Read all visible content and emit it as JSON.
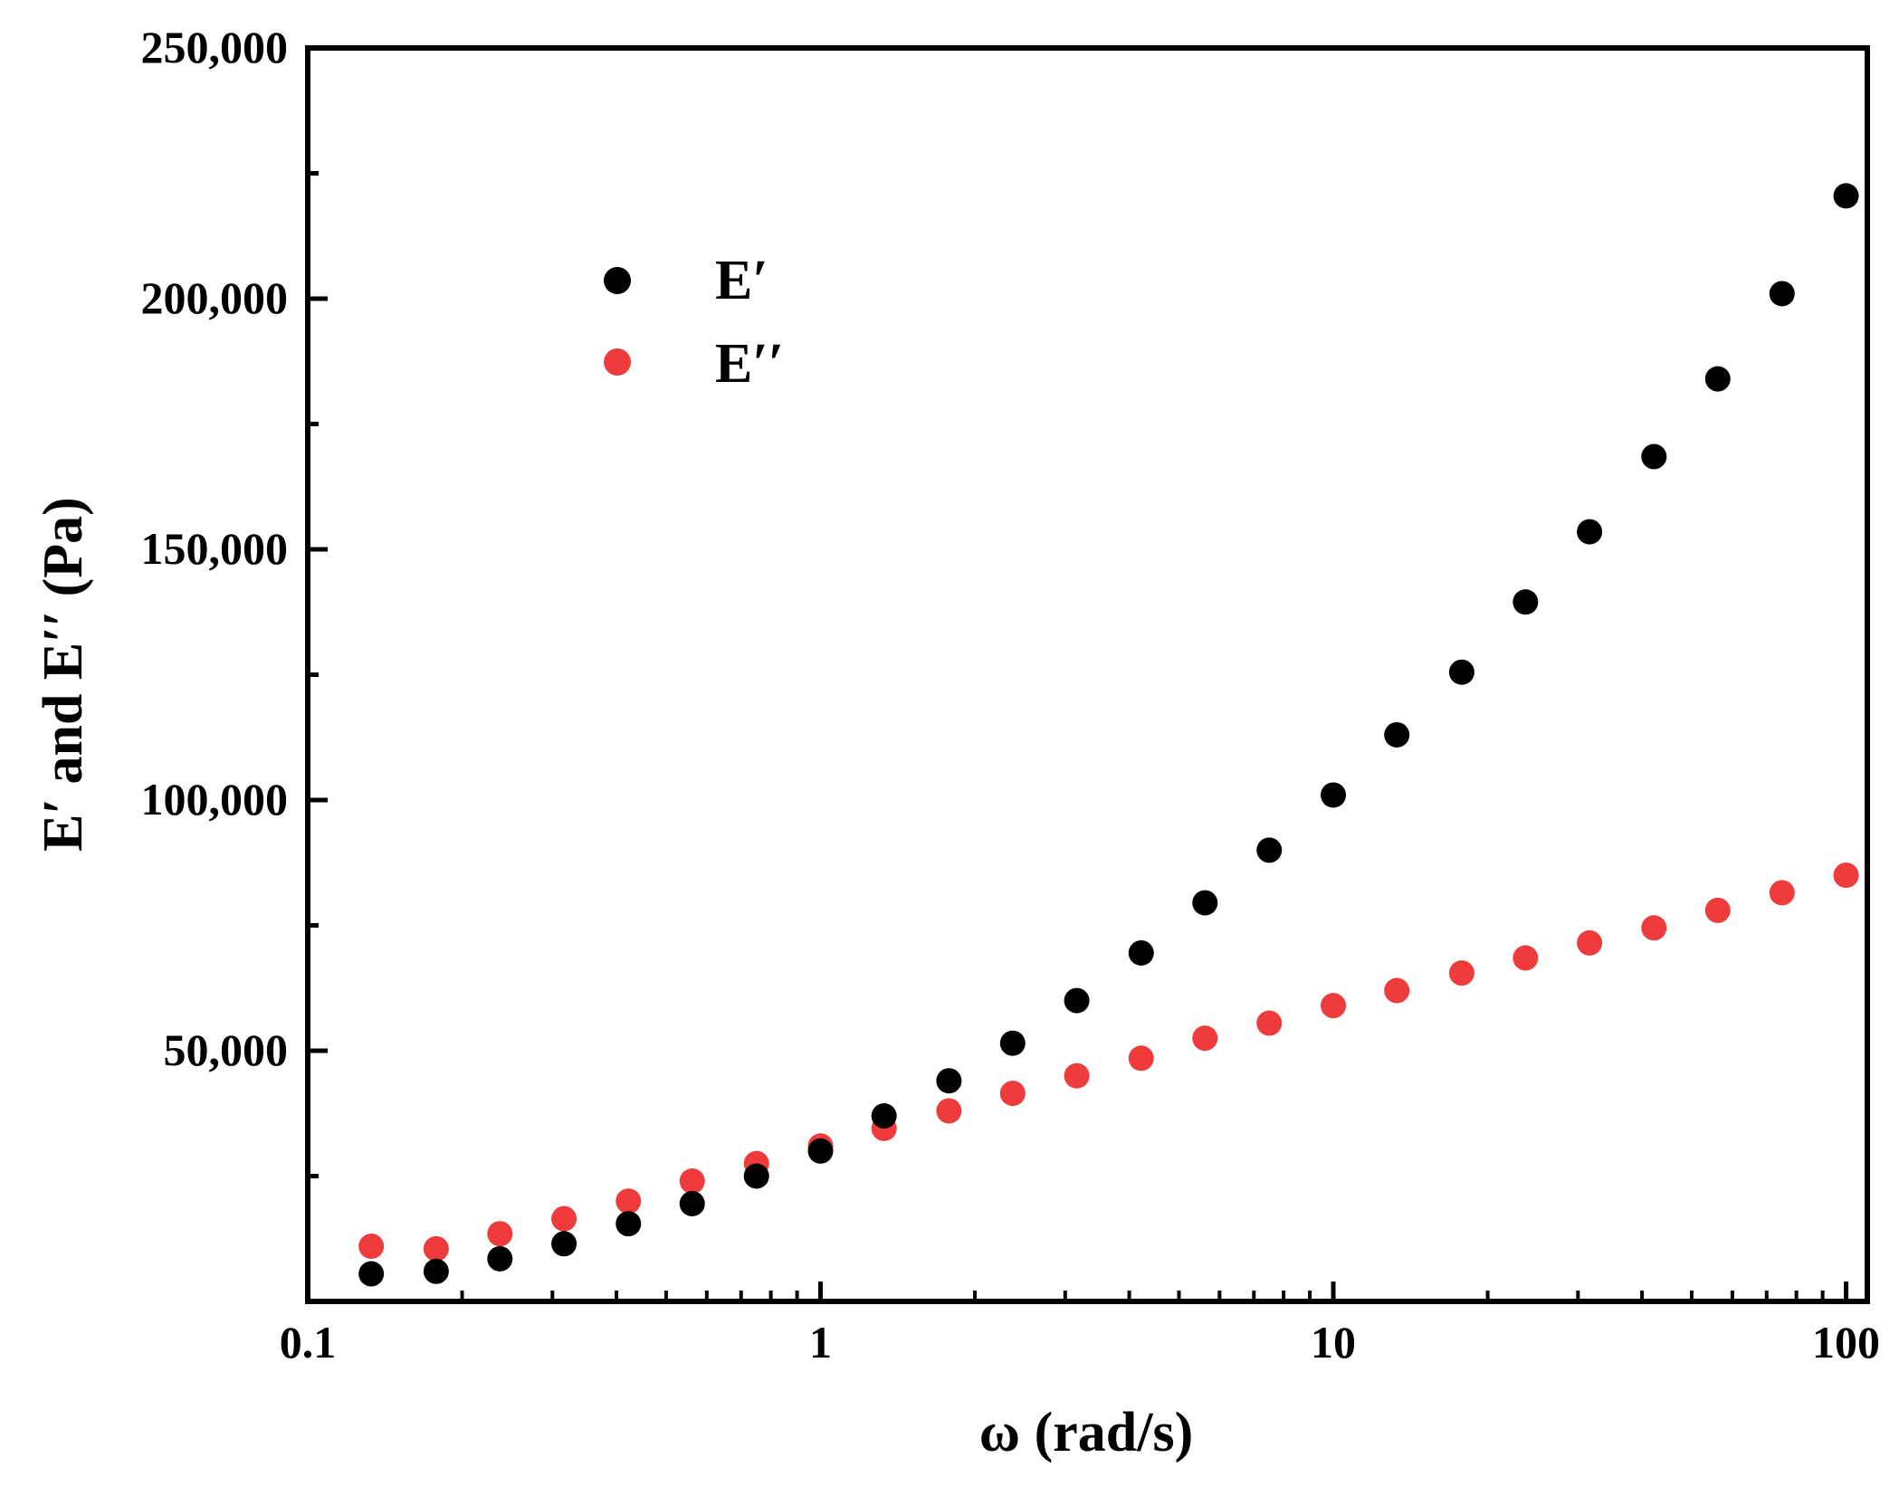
{
  "chart_data": {
    "type": "scatter",
    "title": "",
    "xlabel": "ω (rad/s)",
    "ylabel": "E′ and E′′ (Pa)",
    "xscale": "log",
    "xlim": [
      0.1,
      110
    ],
    "ylim": [
      0,
      250000
    ],
    "x_ticks": [
      0.1,
      1,
      10,
      100
    ],
    "x_tick_labels": [
      "0.1",
      "1",
      "10",
      "100"
    ],
    "y_ticks": [
      50000,
      100000,
      150000,
      200000,
      250000
    ],
    "y_tick_labels": [
      "50,000",
      "100,000",
      "150,000",
      "200,000",
      "250,000"
    ],
    "legend_position": "top-left",
    "x": [
      0.133,
      0.178,
      0.237,
      0.316,
      0.422,
      0.562,
      0.75,
      1.0,
      1.33,
      1.78,
      2.37,
      3.16,
      4.22,
      5.62,
      7.5,
      10,
      13.3,
      17.8,
      23.7,
      31.6,
      42.2,
      56.2,
      75,
      100
    ],
    "series": [
      {
        "name": "E′",
        "color": "#000000",
        "values": [
          5500,
          6000,
          8500,
          11500,
          15500,
          19500,
          25000,
          30000,
          37000,
          44000,
          51500,
          60000,
          69500,
          79500,
          90000,
          101000,
          113000,
          125500,
          139500,
          153500,
          168500,
          184000,
          201000,
          220500
        ]
      },
      {
        "name": "E′′",
        "color": "#ef3b3b",
        "values": [
          11000,
          10500,
          13500,
          16500,
          20000,
          24000,
          27500,
          31000,
          34500,
          38000,
          41500,
          45000,
          48500,
          52500,
          55500,
          59000,
          62000,
          65500,
          68500,
          71500,
          74500,
          78000,
          81500,
          85000
        ]
      }
    ]
  }
}
